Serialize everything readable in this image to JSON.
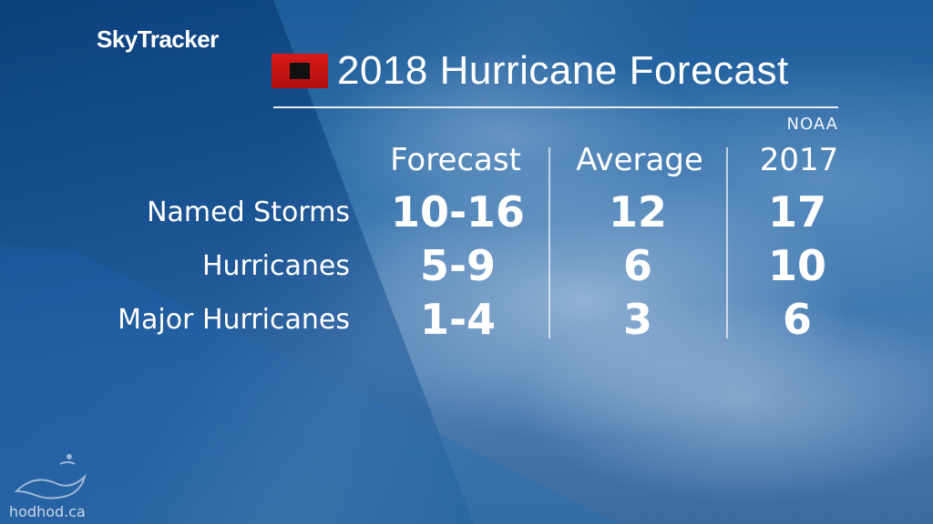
{
  "brand": "SkyTracker",
  "title": "2018 Hurricane Forecast",
  "source": "NOAA",
  "columns": [
    "Forecast",
    "Average",
    "2017"
  ],
  "rows": [
    {
      "label": "Named Storms",
      "forecast": "10-16",
      "average": "12",
      "year2017": "17"
    },
    {
      "label": "Hurricanes",
      "forecast": "5-9",
      "average": "6",
      "year2017": "10"
    },
    {
      "label": "Major Hurricanes",
      "forecast": "1-4",
      "average": "3",
      "year2017": "6"
    }
  ],
  "watermark": "hodhod.ca",
  "icons": {
    "flag": "hurricane-warning-flag-icon",
    "watermark_logo": "bird-logo-icon"
  },
  "colors": {
    "flag_red": "#d81a1a",
    "flag_square": "#111111",
    "text": "#ffffff"
  }
}
